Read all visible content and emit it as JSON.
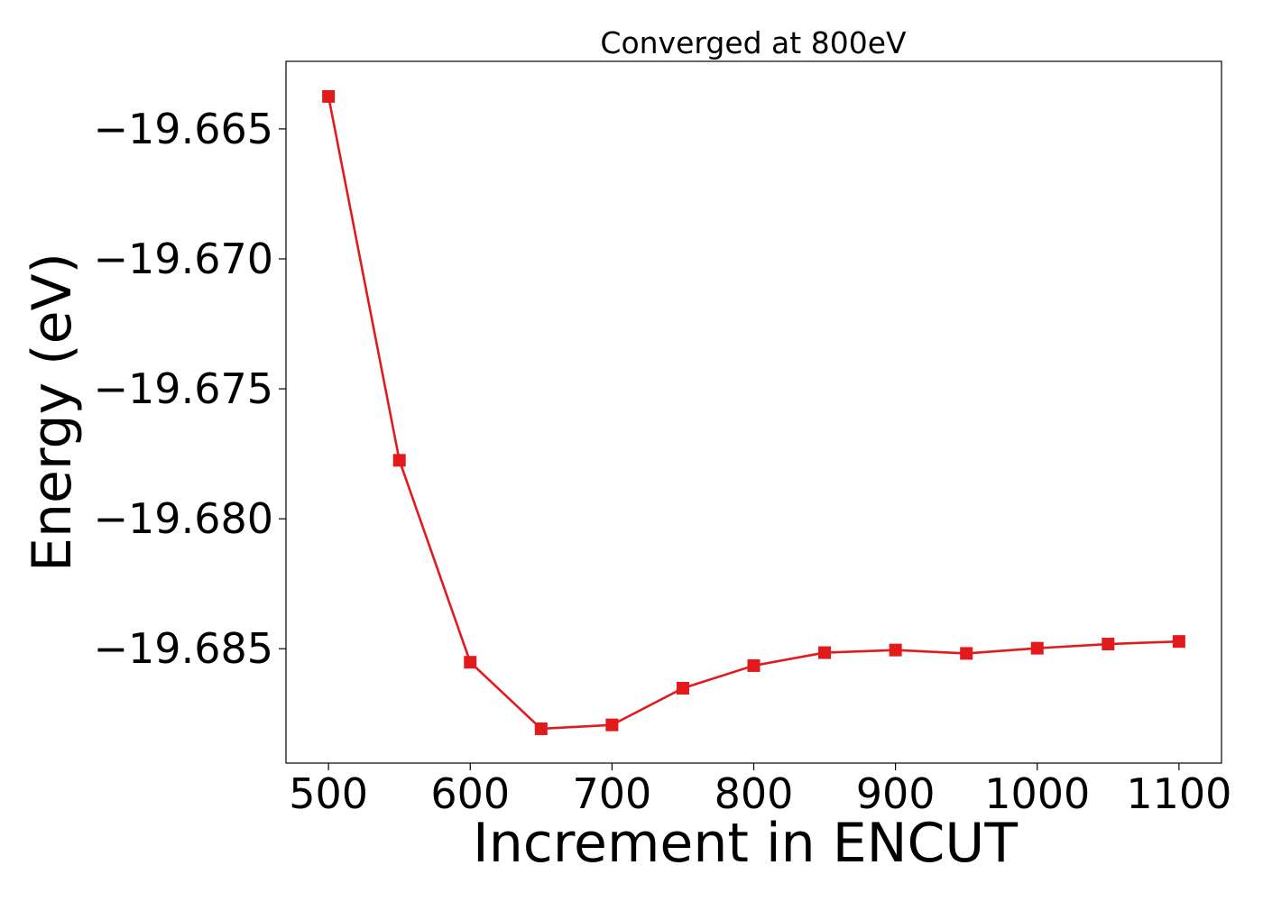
{
  "chart_data": {
    "type": "line",
    "title": "Converged at 800eV",
    "xlabel": "Increment in ENCUT",
    "ylabel": "Energy (eV)",
    "x": [
      500,
      550,
      600,
      650,
      700,
      750,
      800,
      850,
      900,
      950,
      1000,
      1050,
      1100
    ],
    "series": [
      {
        "values": [
          -19.66375,
          -19.67775,
          -19.68552,
          -19.68808,
          -19.68793,
          -19.68652,
          -19.68565,
          -19.68515,
          -19.68505,
          -19.68518,
          -19.68498,
          -19.68482,
          -19.68472
        ],
        "color": "#e31a1c",
        "marker": "square"
      }
    ],
    "xlim": [
      470,
      1130
    ],
    "ylim": [
      -19.6894,
      -19.6624
    ],
    "xticks": [
      500,
      600,
      700,
      800,
      900,
      1000,
      1100
    ],
    "xtick_labels": [
      "500",
      "600",
      "700",
      "800",
      "900",
      "1000",
      "1100"
    ],
    "yticks": [
      -19.665,
      -19.67,
      -19.675,
      -19.68,
      -19.685
    ],
    "ytick_labels": [
      "−19.665",
      "−19.670",
      "−19.675",
      "−19.680",
      "−19.685"
    ],
    "grid": false,
    "legend": "none"
  }
}
